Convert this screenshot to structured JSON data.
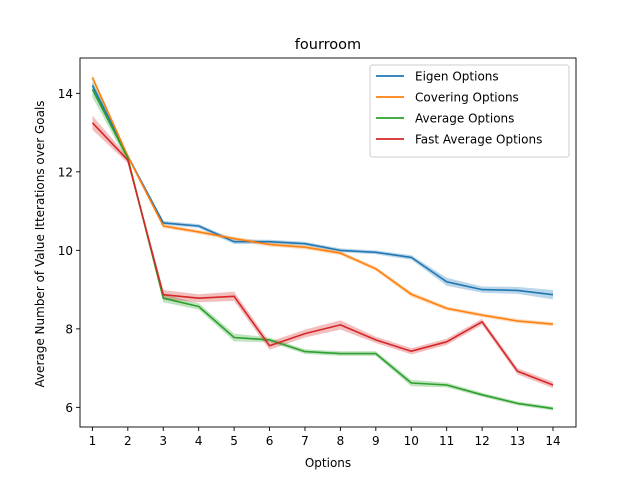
{
  "chart_data": {
    "type": "line",
    "title": "fourroom",
    "xlabel": "Options",
    "ylabel": "Average Number of Value Itterations over Goals",
    "x": [
      1,
      2,
      3,
      4,
      5,
      6,
      7,
      8,
      9,
      10,
      11,
      12,
      13,
      14
    ],
    "xticks": [
      "1",
      "2",
      "3",
      "4",
      "5",
      "6",
      "7",
      "8",
      "9",
      "10",
      "11",
      "12",
      "13",
      "14"
    ],
    "yticks": [
      6,
      8,
      10,
      12,
      14
    ],
    "ytick_labels": [
      "6",
      "8",
      "10",
      "12",
      "14"
    ],
    "xlim": [
      0.65,
      14.65
    ],
    "ylim": [
      5.5,
      14.9
    ],
    "grid": false,
    "legend_position": "top-right",
    "series": [
      {
        "name": "Eigen Options",
        "color": "#1f77b4",
        "values": [
          14.2,
          12.4,
          10.7,
          10.62,
          10.22,
          10.22,
          10.17,
          10.0,
          9.95,
          9.82,
          9.2,
          9.0,
          8.98,
          8.87
        ],
        "band": [
          0.1,
          0.06,
          0.05,
          0.05,
          0.06,
          0.05,
          0.05,
          0.05,
          0.05,
          0.06,
          0.1,
          0.08,
          0.09,
          0.12
        ]
      },
      {
        "name": "Covering Options",
        "color": "#ff7f0e",
        "values": [
          14.4,
          12.4,
          10.62,
          10.47,
          10.3,
          10.15,
          10.08,
          9.93,
          9.53,
          8.88,
          8.52,
          8.35,
          8.2,
          8.12
        ],
        "band": [
          0.08,
          0.05,
          0.05,
          0.05,
          0.05,
          0.05,
          0.05,
          0.05,
          0.05,
          0.06,
          0.05,
          0.05,
          0.05,
          0.05
        ]
      },
      {
        "name": "Average Options",
        "color": "#2ca02c",
        "values": [
          14.1,
          12.35,
          8.78,
          8.57,
          7.78,
          7.72,
          7.42,
          7.37,
          7.37,
          6.62,
          6.57,
          6.32,
          6.1,
          5.97
        ],
        "band": [
          0.2,
          0.1,
          0.1,
          0.08,
          0.1,
          0.06,
          0.06,
          0.06,
          0.06,
          0.08,
          0.06,
          0.05,
          0.05,
          0.05
        ]
      },
      {
        "name": "Fast Average Options",
        "color": "#d62728",
        "values": [
          13.25,
          12.3,
          8.87,
          8.78,
          8.83,
          7.57,
          7.88,
          8.1,
          7.72,
          7.43,
          7.67,
          8.18,
          6.92,
          6.57
        ],
        "band": [
          0.18,
          0.08,
          0.12,
          0.1,
          0.12,
          0.1,
          0.1,
          0.12,
          0.08,
          0.08,
          0.08,
          0.08,
          0.08,
          0.08
        ]
      }
    ]
  }
}
